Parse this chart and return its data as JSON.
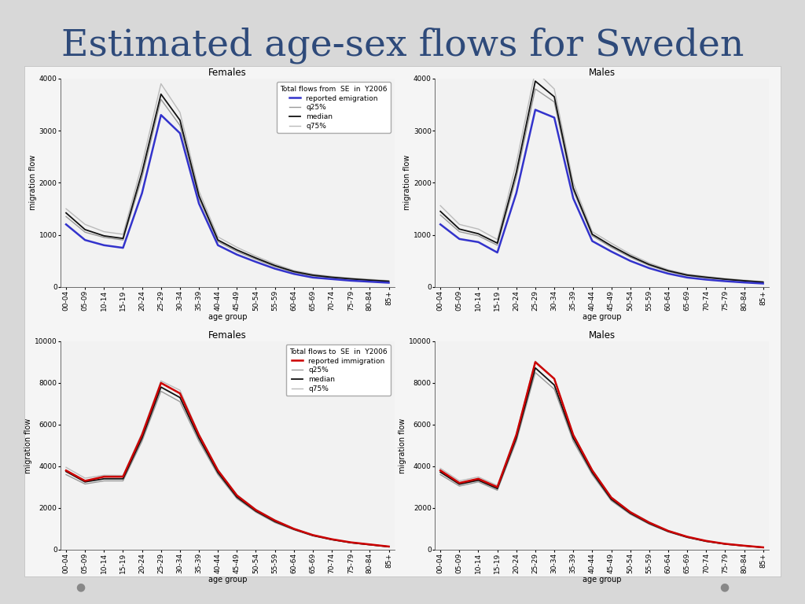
{
  "title": "Estimated age-sex flows for Sweden",
  "title_color": "#2E4A7A",
  "title_fontsize": 34,
  "background_color": "#D8D8D8",
  "panel_bg": "#E8E8EC",
  "chart_bg": "#F2F2F2",
  "age_groups": [
    "00-04",
    "05-09",
    "10-14",
    "15-19",
    "20-24",
    "25-29",
    "30-34",
    "35-39",
    "40-44",
    "45-49",
    "50-54",
    "55-59",
    "60-64",
    "65-69",
    "70-74",
    "75-79",
    "80-84",
    "85+"
  ],
  "emigration_females_reported": [
    1200,
    900,
    800,
    750,
    1800,
    3300,
    2950,
    1600,
    800,
    620,
    480,
    350,
    250,
    180,
    150,
    120,
    100,
    80
  ],
  "emigration_females_q25": [
    1350,
    1050,
    950,
    900,
    2100,
    3600,
    3100,
    1700,
    870,
    680,
    530,
    390,
    280,
    210,
    175,
    145,
    120,
    100
  ],
  "emigration_females_median": [
    1420,
    1100,
    980,
    930,
    2200,
    3700,
    3200,
    1750,
    900,
    710,
    555,
    410,
    295,
    225,
    185,
    155,
    130,
    108
  ],
  "emigration_females_q75": [
    1500,
    1200,
    1060,
    1010,
    2350,
    3900,
    3350,
    1840,
    960,
    760,
    590,
    440,
    315,
    245,
    200,
    170,
    145,
    120
  ],
  "emigration_males_reported": [
    1200,
    920,
    860,
    660,
    1800,
    3400,
    3250,
    1700,
    880,
    680,
    500,
    360,
    255,
    180,
    140,
    110,
    85,
    65
  ],
  "emigration_males_q25": [
    1380,
    1060,
    980,
    800,
    2100,
    3800,
    3550,
    1850,
    980,
    760,
    570,
    410,
    295,
    215,
    175,
    140,
    110,
    85
  ],
  "emigration_males_median": [
    1450,
    1110,
    1020,
    840,
    2200,
    3950,
    3650,
    1900,
    1010,
    790,
    595,
    430,
    310,
    227,
    185,
    148,
    118,
    92
  ],
  "emigration_males_q75": [
    1560,
    1200,
    1110,
    910,
    2380,
    4150,
    3800,
    2000,
    1060,
    840,
    630,
    460,
    330,
    244,
    200,
    162,
    130,
    102
  ],
  "immigration_females_reported": [
    3800,
    3300,
    3500,
    3500,
    5500,
    8000,
    7500,
    5500,
    3800,
    2600,
    1900,
    1400,
    1000,
    700,
    500,
    350,
    250,
    150
  ],
  "immigration_females_q25": [
    3600,
    3150,
    3300,
    3300,
    5200,
    7600,
    7100,
    5200,
    3600,
    2450,
    1800,
    1300,
    950,
    660,
    470,
    325,
    230,
    135
  ],
  "immigration_females_median": [
    3750,
    3250,
    3400,
    3400,
    5350,
    7800,
    7300,
    5350,
    3700,
    2520,
    1850,
    1350,
    980,
    680,
    485,
    335,
    238,
    142
  ],
  "immigration_females_q75": [
    3950,
    3430,
    3570,
    3560,
    5600,
    8100,
    7650,
    5550,
    3850,
    2640,
    1940,
    1430,
    1020,
    710,
    505,
    350,
    250,
    152
  ],
  "immigration_males_reported": [
    3800,
    3200,
    3400,
    3000,
    5500,
    9000,
    8200,
    5500,
    3800,
    2500,
    1800,
    1300,
    900,
    620,
    420,
    280,
    190,
    110
  ],
  "immigration_males_q25": [
    3600,
    3050,
    3250,
    2850,
    5200,
    8500,
    7700,
    5200,
    3600,
    2350,
    1700,
    1220,
    850,
    580,
    390,
    262,
    178,
    102
  ],
  "immigration_males_median": [
    3720,
    3140,
    3330,
    2930,
    5350,
    8720,
    7900,
    5350,
    3700,
    2420,
    1750,
    1260,
    875,
    598,
    402,
    270,
    184,
    106
  ],
  "immigration_males_q75": [
    3900,
    3300,
    3490,
    3080,
    5580,
    9050,
    8200,
    5550,
    3850,
    2530,
    1840,
    1330,
    920,
    628,
    422,
    284,
    195,
    112
  ],
  "emigration_ylim": [
    0,
    4000
  ],
  "immigration_ylim": [
    0,
    10000
  ],
  "emigration_yticks": [
    0,
    1000,
    2000,
    3000,
    4000
  ],
  "immigration_yticks": [
    0,
    2000,
    4000,
    6000,
    8000,
    10000
  ],
  "blue_color": "#3333CC",
  "red_color": "#CC0000",
  "black_color": "#111111",
  "gray_color": "#999999",
  "light_gray_color": "#BBBBBB",
  "dot_color": "#888888"
}
